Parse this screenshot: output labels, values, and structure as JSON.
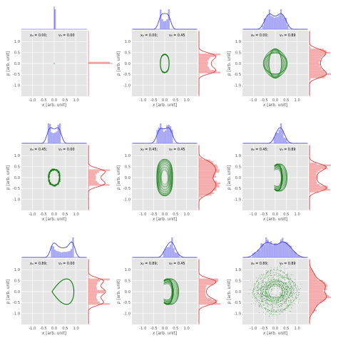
{
  "chart_data": {
    "type": "scatter",
    "layout": "3x3 grid of phase-space plots with marginal histograms",
    "xlabel_main": "x",
    "ylabel_main": "p",
    "xlabel_unit": "[arb. unit]",
    "ylabel_unit": "[arb. unit]",
    "xlim": [
      -1.5,
      1.5
    ],
    "ylim": [
      -1.5,
      1.5
    ],
    "xticks": [
      "-1.0",
      "-0.5",
      "0.0",
      "0.5",
      "1.0"
    ],
    "yticks": [
      "1.0",
      "0.5",
      "0.0",
      "-0.5",
      "-1.0"
    ],
    "xtick_values": [
      -1.0,
      -0.5,
      0.0,
      0.5,
      1.0
    ],
    "ytick_values": [
      1.0,
      0.5,
      0.0,
      -0.5,
      -1.0
    ],
    "grid": true,
    "colors": {
      "phase": "#0b7a0b",
      "top_hist": "#8b8bf0",
      "top_curve": "#2f2fd6",
      "right_hist": "#f29090",
      "right_curve": "#d62f2f",
      "panel_bg": "#e5e5e5",
      "grid": "#ffffff",
      "label": "#555555",
      "text": "#000000"
    },
    "panels": [
      {
        "x0_label": "x₀ = 0.00;",
        "v0_label": "v₀ = 0.00",
        "x0": 0.0,
        "v0": 0.0,
        "kind": "point",
        "ax": 0,
        "ap": 0,
        "spread": 0
      },
      {
        "x0_label": "x₀ = 0.00;",
        "v0_label": "v₀ = 0.45",
        "x0": 0.0,
        "v0": 0.45,
        "kind": "ring",
        "ax": 0.22,
        "ap": 0.42,
        "spread": 0.03
      },
      {
        "x0_label": "x₀ = 0.00;",
        "v0_label": "v₀ = 0.89",
        "x0": 0.0,
        "v0": 0.89,
        "kind": "lissajous",
        "ax": 0.55,
        "ap": 0.68,
        "spread": 0.25
      },
      {
        "x0_label": "x₀ = 0.45;",
        "v0_label": "v₀ = 0.00",
        "x0": 0.45,
        "v0": 0.0,
        "kind": "ring",
        "ax": 0.28,
        "ap": 0.38,
        "spread": 0.08
      },
      {
        "x0_label": "x₀ = 0.45;",
        "v0_label": "v₀ = 0.45",
        "x0": 0.45,
        "v0": 0.45,
        "kind": "band",
        "ax": 0.42,
        "ap": 0.85,
        "spread": 0.55
      },
      {
        "x0_label": "x₀ = 0.45;",
        "v0_label": "v₀ = 0.89",
        "x0": 0.45,
        "v0": 0.89,
        "kind": "fan",
        "ax": 0.6,
        "ap": 1.0,
        "spread": 0.6
      },
      {
        "x0_label": "x₀ = 0.89;",
        "v0_label": "v₀ = 0.00",
        "x0": 0.89,
        "v0": 0.0,
        "kind": "teardrop",
        "ax": 0.89,
        "ap": 0.72,
        "spread": 0.03
      },
      {
        "x0_label": "x₀ = 0.89;",
        "v0_label": "v₀ = 0.45",
        "x0": 0.89,
        "v0": 0.45,
        "kind": "fan",
        "ax": 0.7,
        "ap": 0.95,
        "spread": 0.35
      },
      {
        "x0_label": "x₀ = 0.89;",
        "v0_label": "v₀ = 0.89",
        "x0": 0.89,
        "v0": 0.89,
        "kind": "chaos",
        "ax": 1.1,
        "ap": 1.1,
        "spread": 1.0
      }
    ]
  }
}
